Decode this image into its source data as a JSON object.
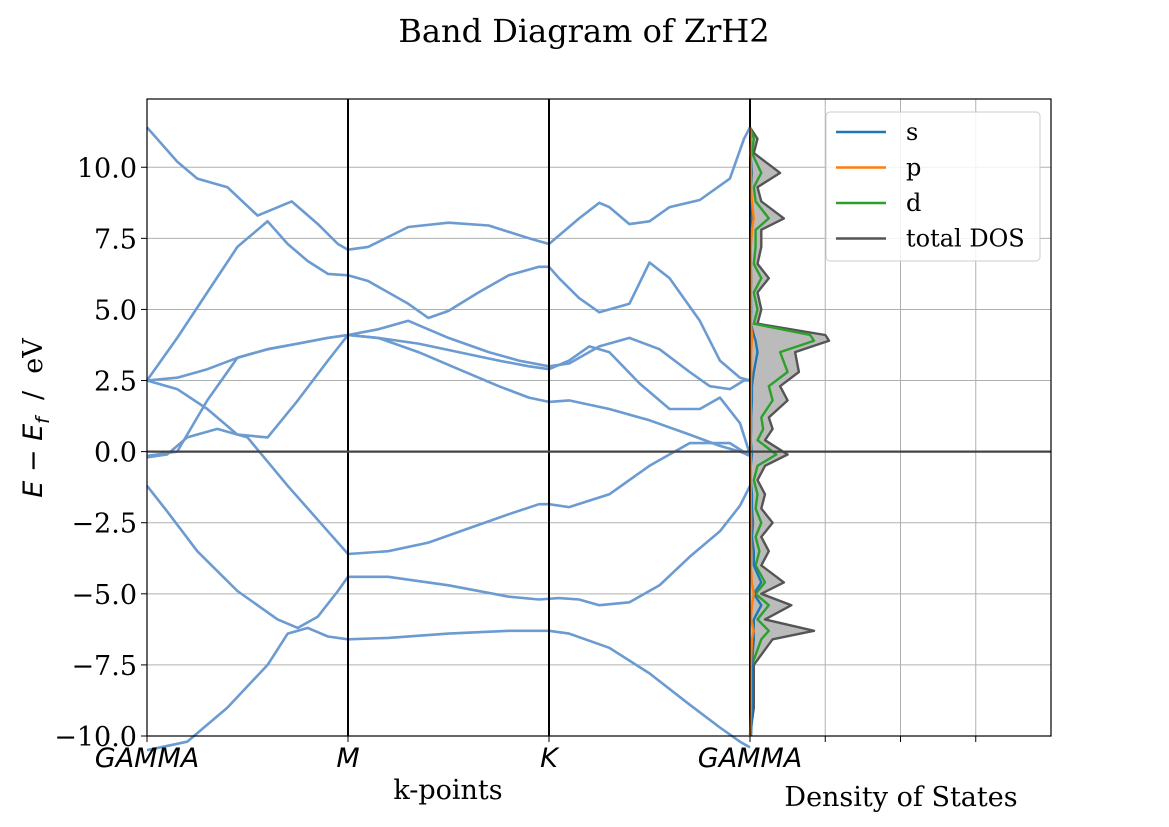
{
  "title": "Band Diagram of ZrH2",
  "band_panel": {
    "xlabel": "k-points",
    "ylabel": "E − E_f   /   eV",
    "ylabel_main": "E",
    "ylabel_minus": " − ",
    "ylabel_E2": "E",
    "ylabel_sub": "f",
    "ylabel_unit": "  /  eV",
    "kpoint_labels": [
      "GAMMA",
      "M",
      "K",
      "GAMMA"
    ]
  },
  "dos_panel": {
    "xlabel": "Density of States",
    "legend": [
      "s",
      "p",
      "d",
      "total DOS"
    ]
  },
  "colors": {
    "band": "#6b9bd1",
    "s": "#1f77b4",
    "p": "#ff7f0e",
    "d": "#2ca02c",
    "total": "#555555",
    "total_fill": "#bbbbbb",
    "grid": "#b0b0b0"
  },
  "chart_data": [
    {
      "type": "line",
      "title": "Band Diagram of ZrH2",
      "xlabel": "k-points",
      "ylabel": "E − E_f / eV",
      "ylim": [
        -10,
        12.4
      ],
      "yticks": [
        -10.0,
        -7.5,
        -5.0,
        -2.5,
        0.0,
        2.5,
        5.0,
        7.5,
        10.0
      ],
      "ytick_labels": [
        "−10.0",
        "−7.5",
        "−5.0",
        "−2.5",
        "0.0",
        "2.5",
        "5.0",
        "7.5",
        "10.0"
      ],
      "xticks": [
        "GAMMA",
        "M",
        "K",
        "GAMMA"
      ],
      "xtick_positions": [
        0,
        1,
        2,
        3
      ],
      "fermi_level": 0.0,
      "grid": true,
      "series": [
        {
          "x": [
            0,
            0.05,
            0.15,
            0.25,
            0.4,
            0.55,
            0.72,
            0.85,
            0.95,
            1.0,
            1.1,
            1.3,
            1.5,
            1.7,
            1.9,
            2.0,
            2.05,
            2.15,
            2.25,
            2.3,
            2.4,
            2.5,
            2.6,
            2.75,
            2.9,
            2.97,
            3.0
          ],
          "y": [
            11.4,
            11.0,
            10.2,
            9.6,
            9.3,
            8.3,
            8.8,
            8.0,
            7.3,
            7.1,
            7.2,
            7.9,
            8.05,
            7.95,
            7.5,
            7.3,
            7.6,
            8.2,
            8.75,
            8.6,
            8.0,
            8.1,
            8.6,
            8.85,
            9.6,
            11.0,
            11.4
          ]
        },
        {
          "x": [
            0,
            0.15,
            0.3,
            0.45,
            0.6,
            0.7,
            0.8,
            0.9,
            1.0,
            1.1,
            1.3,
            1.4,
            1.5,
            1.65,
            1.8,
            1.95,
            2.0,
            2.05,
            2.15,
            2.25,
            2.4,
            2.5,
            2.6,
            2.75,
            2.85,
            2.95,
            3.0
          ],
          "y": [
            2.5,
            4.0,
            5.6,
            7.2,
            8.1,
            7.3,
            6.7,
            6.25,
            6.2,
            6.0,
            5.2,
            4.7,
            4.95,
            5.6,
            6.2,
            6.5,
            6.5,
            6.1,
            5.4,
            4.9,
            5.2,
            6.65,
            6.1,
            4.6,
            3.2,
            2.6,
            2.5
          ]
        },
        {
          "x": [
            0,
            0.15,
            0.3,
            0.45,
            0.6,
            0.75,
            0.9,
            1.0,
            1.15,
            1.3,
            1.5,
            1.7,
            1.85,
            2.0,
            2.1,
            2.25,
            2.4,
            2.55,
            2.7,
            2.8,
            2.9,
            2.97,
            3.0
          ],
          "y": [
            2.5,
            2.6,
            2.9,
            3.3,
            3.6,
            3.8,
            4.0,
            4.1,
            4.3,
            4.6,
            4.0,
            3.5,
            3.2,
            3.0,
            3.1,
            3.7,
            4.0,
            3.6,
            2.8,
            2.3,
            2.2,
            2.5,
            2.5
          ]
        },
        {
          "x": [
            0,
            0.15,
            0.3,
            0.45,
            0.6,
            0.75,
            0.9,
            1.0,
            1.15,
            1.35,
            1.55,
            1.75,
            1.9,
            2.0,
            2.1,
            2.2,
            2.3,
            2.45,
            2.6,
            2.75,
            2.85,
            2.95,
            3.0
          ],
          "y": [
            2.5,
            2.2,
            1.5,
            0.6,
            0.5,
            1.8,
            3.2,
            4.1,
            4.0,
            3.8,
            3.5,
            3.2,
            3.0,
            2.9,
            3.2,
            3.7,
            3.5,
            2.4,
            1.5,
            1.5,
            1.9,
            1.0,
            -0.1
          ]
        },
        {
          "x": [
            0,
            0.15,
            0.3,
            0.45,
            0.6,
            0.75,
            0.9,
            1.0,
            1.15,
            1.35,
            1.55,
            1.75,
            1.9,
            2.0,
            2.1,
            2.3,
            2.5,
            2.7,
            2.85,
            2.95,
            3.0
          ],
          "y": [
            -0.15,
            0.0,
            1.8,
            3.3,
            3.6,
            3.8,
            4.0,
            4.1,
            4.0,
            3.5,
            2.9,
            2.3,
            1.9,
            1.75,
            1.8,
            1.5,
            1.1,
            0.6,
            0.2,
            0.0,
            -0.15
          ]
        },
        {
          "x": [
            0,
            0.1,
            0.2,
            0.35,
            0.5,
            0.7,
            0.9,
            1.0,
            1.2,
            1.4,
            1.6,
            1.8,
            1.95,
            2.0,
            2.1,
            2.3,
            2.5,
            2.7,
            2.9,
            3.0
          ],
          "y": [
            -0.2,
            -0.1,
            0.5,
            0.8,
            0.5,
            -1.2,
            -2.8,
            -3.6,
            -3.5,
            -3.2,
            -2.7,
            -2.2,
            -1.85,
            -1.85,
            -1.95,
            -1.5,
            -0.5,
            0.3,
            0.3,
            -0.15
          ]
        },
        {
          "x": [
            0,
            0.1,
            0.25,
            0.45,
            0.65,
            0.75,
            0.85,
            0.95,
            1.0,
            1.2,
            1.5,
            1.8,
            1.95,
            2.05,
            2.15,
            2.25,
            2.4,
            2.55,
            2.7,
            2.85,
            2.95,
            3.0
          ],
          "y": [
            -1.2,
            -2.1,
            -3.5,
            -4.9,
            -5.9,
            -6.2,
            -5.8,
            -4.9,
            -4.4,
            -4.4,
            -4.7,
            -5.1,
            -5.2,
            -5.15,
            -5.2,
            -5.4,
            -5.3,
            -4.7,
            -3.7,
            -2.8,
            -1.9,
            -1.2
          ]
        },
        {
          "x": [
            0,
            0.2,
            0.4,
            0.6,
            0.7,
            0.8,
            0.9,
            1.0,
            1.2,
            1.5,
            1.8,
            2.0,
            2.1,
            2.3,
            2.5,
            2.7,
            2.85,
            2.95,
            3.0
          ],
          "y": [
            -10.5,
            -10.2,
            -9.0,
            -7.5,
            -6.4,
            -6.2,
            -6.5,
            -6.6,
            -6.55,
            -6.4,
            -6.3,
            -6.3,
            -6.4,
            -6.9,
            -7.8,
            -8.9,
            -9.7,
            -10.2,
            -10.4
          ]
        }
      ]
    },
    {
      "type": "line",
      "xlabel": "Density of States",
      "ylim": [
        -10,
        12.4
      ],
      "fill_total": true,
      "legend_position": "upper right",
      "grid": true,
      "series": [
        {
          "name": "total DOS",
          "x": [
            0.0,
            0.2,
            0.1,
            0.8,
            0.2,
            0.3,
            0.9,
            0.3,
            0.3,
            0.2,
            0.5,
            0.2,
            0.3,
            0.2,
            2.0,
            2.1,
            1.2,
            1.3,
            0.8,
            1.0,
            0.5,
            0.6,
            0.4,
            1.0,
            0.4,
            0.2,
            0.4,
            0.3,
            0.6,
            0.3,
            0.5,
            0.3,
            0.9,
            0.3,
            1.1,
            0.4,
            1.7,
            0.6,
            0.1,
            0.1,
            0.0
          ],
          "y": [
            11.4,
            11.0,
            10.5,
            9.8,
            9.3,
            8.8,
            8.2,
            7.8,
            7.2,
            6.6,
            6.1,
            5.6,
            5.0,
            4.5,
            4.1,
            3.9,
            3.5,
            2.8,
            2.3,
            1.8,
            1.2,
            0.8,
            0.4,
            -0.1,
            -0.5,
            -1.0,
            -1.5,
            -2.0,
            -2.5,
            -3.0,
            -3.5,
            -4.0,
            -4.6,
            -5.0,
            -5.4,
            -5.9,
            -6.3,
            -6.6,
            -7.5,
            -9.0,
            -10.0
          ]
        },
        {
          "name": "d",
          "x": [
            0.0,
            0.1,
            0.05,
            0.3,
            0.1,
            0.15,
            0.5,
            0.15,
            0.15,
            0.1,
            0.3,
            0.1,
            0.2,
            0.1,
            1.6,
            1.7,
            0.8,
            1.0,
            0.5,
            0.6,
            0.3,
            0.35,
            0.2,
            0.7,
            0.2,
            0.1,
            0.2,
            0.15,
            0.3,
            0.15,
            0.25,
            0.15,
            0.4,
            0.15,
            0.5,
            0.2,
            0.5,
            0.3,
            0.05,
            0.05,
            0.0
          ],
          "y": [
            11.4,
            11.0,
            10.5,
            9.8,
            9.3,
            8.8,
            8.2,
            7.8,
            7.2,
            6.6,
            6.1,
            5.6,
            5.0,
            4.5,
            4.1,
            3.9,
            3.5,
            2.8,
            2.3,
            1.8,
            1.2,
            0.8,
            0.4,
            -0.1,
            -0.5,
            -1.0,
            -1.5,
            -2.0,
            -2.5,
            -3.0,
            -3.5,
            -4.0,
            -4.6,
            -5.0,
            -5.4,
            -5.9,
            -6.3,
            -6.6,
            -7.5,
            -9.0,
            -10.0
          ]
        },
        {
          "name": "s",
          "x": [
            0.0,
            0.02,
            0.01,
            0.05,
            0.02,
            0.02,
            0.05,
            0.02,
            0.02,
            0.02,
            0.03,
            0.02,
            0.03,
            0.02,
            0.1,
            0.15,
            0.2,
            0.1,
            0.05,
            0.05,
            0.03,
            0.03,
            0.02,
            0.05,
            0.02,
            0.02,
            0.05,
            0.05,
            0.08,
            0.05,
            0.1,
            0.1,
            0.3,
            0.1,
            0.3,
            0.1,
            0.1,
            0.1,
            0.05,
            0.05,
            0.03
          ],
          "y": [
            11.4,
            11.0,
            10.5,
            9.8,
            9.3,
            8.8,
            8.2,
            7.8,
            7.2,
            6.6,
            6.1,
            5.6,
            5.0,
            4.5,
            4.1,
            3.9,
            3.5,
            2.8,
            2.3,
            1.8,
            1.2,
            0.8,
            0.4,
            -0.1,
            -0.5,
            -1.0,
            -1.5,
            -2.0,
            -2.5,
            -3.0,
            -3.5,
            -4.0,
            -4.6,
            -5.0,
            -5.4,
            -5.9,
            -6.3,
            -6.6,
            -7.5,
            -9.0,
            -10.0
          ]
        },
        {
          "name": "p",
          "x": [
            0.0,
            0.02,
            0.01,
            0.03,
            0.02,
            0.05,
            0.1,
            0.05,
            0.02,
            0.02,
            0.03,
            0.02,
            0.02,
            0.02,
            0.05,
            0.05,
            0.03,
            0.03,
            0.02,
            0.02,
            0.02,
            0.02,
            0.02,
            0.02,
            0.02,
            0.02,
            0.02,
            0.02,
            0.03,
            0.02,
            0.03,
            0.02,
            0.05,
            0.1,
            0.05,
            0.02,
            0.1,
            0.05,
            0.02,
            0.02,
            0.0
          ],
          "y": [
            11.4,
            11.0,
            10.5,
            9.8,
            9.3,
            8.8,
            8.2,
            7.8,
            7.2,
            6.6,
            6.1,
            5.6,
            5.0,
            4.5,
            4.1,
            3.9,
            3.5,
            2.8,
            2.3,
            1.8,
            1.2,
            0.8,
            0.4,
            -0.1,
            -0.5,
            -1.0,
            -1.5,
            -2.0,
            -2.5,
            -3.0,
            -3.5,
            -4.0,
            -4.6,
            -5.0,
            -5.4,
            -5.9,
            -6.3,
            -6.6,
            -7.5,
            -9.0,
            -10.0
          ]
        }
      ]
    }
  ]
}
